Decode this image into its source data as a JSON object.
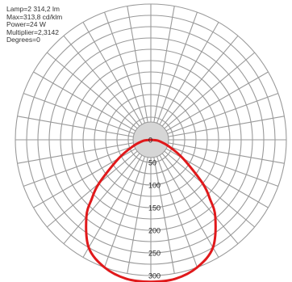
{
  "info": {
    "lamp": "Lamp=2 314,2 lm",
    "max": "Max=313,8 cd/klm",
    "power": "Power=24 W",
    "multiplier": "Multiplier=2,3142",
    "degrees": "Degrees=0"
  },
  "chart_data": {
    "type": "polar",
    "title": "",
    "radial_unit": "cd/klm",
    "radial_ticks": [
      0,
      50,
      100,
      150,
      200,
      250,
      300
    ],
    "radial_tick_labels": [
      "0",
      "50",
      "100",
      "150",
      "200",
      "250",
      "300"
    ],
    "radial_max": 300,
    "angular_step_deg": 10,
    "grid": true,
    "zero_direction": "down",
    "series": [
      {
        "color": "#e0191b",
        "angles_deg": [
          0,
          10,
          20,
          30,
          40,
          45,
          50,
          60,
          70,
          80,
          85,
          90
        ],
        "values": [
          313.8,
          312,
          300,
          275,
          222,
          185,
          150,
          82,
          42,
          20,
          10,
          0
        ]
      }
    ]
  }
}
